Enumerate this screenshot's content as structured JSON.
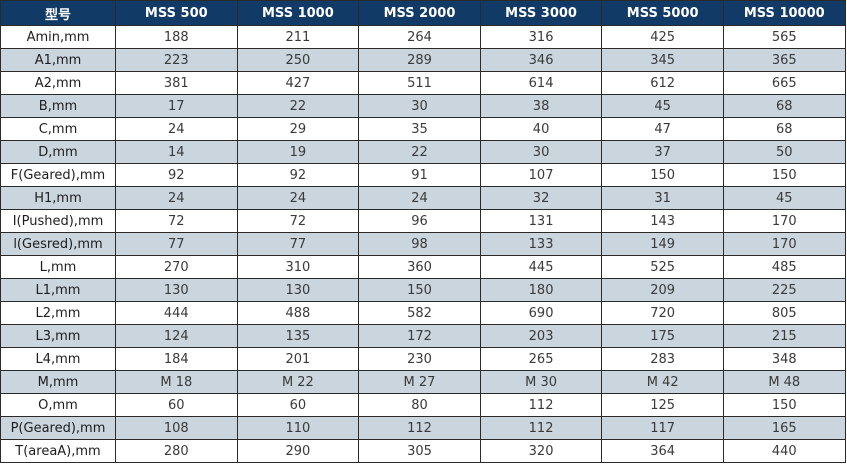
{
  "table": {
    "header": {
      "param_label": "型号",
      "models": [
        "MSS 500",
        "MSS 1000",
        "MSS 2000",
        "MSS 3000",
        "MSS 5000",
        "MSS 10000"
      ]
    },
    "rows": [
      {
        "param": "Amin,mm",
        "values": [
          "188",
          "211",
          "264",
          "316",
          "425",
          "565"
        ]
      },
      {
        "param": "A1,mm",
        "values": [
          "223",
          "250",
          "289",
          "346",
          "345",
          "365"
        ]
      },
      {
        "param": "A2,mm",
        "values": [
          "381",
          "427",
          "511",
          "614",
          "612",
          "665"
        ]
      },
      {
        "param": "B,mm",
        "values": [
          "17",
          "22",
          "30",
          "38",
          "45",
          "68"
        ]
      },
      {
        "param": "C,mm",
        "values": [
          "24",
          "29",
          "35",
          "40",
          "47",
          "68"
        ]
      },
      {
        "param": "D,mm",
        "values": [
          "14",
          "19",
          "22",
          "30",
          "37",
          "50"
        ]
      },
      {
        "param": "F(Geared),mm",
        "values": [
          "92",
          "92",
          "91",
          "107",
          "150",
          "150"
        ]
      },
      {
        "param": "H1,mm",
        "values": [
          "24",
          "24",
          "24",
          "32",
          "31",
          "45"
        ]
      },
      {
        "param": "I(Pushed),mm",
        "values": [
          "72",
          "72",
          "96",
          "131",
          "143",
          "170"
        ]
      },
      {
        "param": "l(Gesred),mm",
        "values": [
          "77",
          "77",
          "98",
          "133",
          "149",
          "170"
        ]
      },
      {
        "param": "L,mm",
        "values": [
          "270",
          "310",
          "360",
          "445",
          "525",
          "485"
        ]
      },
      {
        "param": "L1,mm",
        "values": [
          "130",
          "130",
          "150",
          "180",
          "209",
          "225"
        ]
      },
      {
        "param": "L2,mm",
        "values": [
          "444",
          "488",
          "582",
          "690",
          "720",
          "805"
        ]
      },
      {
        "param": "L3,mm",
        "values": [
          "124",
          "135",
          "172",
          "203",
          "175",
          "215"
        ]
      },
      {
        "param": "L4,mm",
        "values": [
          "184",
          "201",
          "230",
          "265",
          "283",
          "348"
        ]
      },
      {
        "param": "M,mm",
        "values": [
          "M 18",
          "M 22",
          "M 27",
          "M 30",
          "M 42",
          "M 48"
        ]
      },
      {
        "param": "O,mm",
        "values": [
          "60",
          "60",
          "80",
          "112",
          "125",
          "150"
        ]
      },
      {
        "param": "P(Geared),mm",
        "values": [
          "108",
          "110",
          "112",
          "112",
          "117",
          "165"
        ]
      },
      {
        "param": "T(areaA),mm",
        "values": [
          "280",
          "290",
          "305",
          "320",
          "364",
          "440"
        ]
      }
    ]
  },
  "colors": {
    "header_bg": "#113a66",
    "header_text": "#ffffff",
    "alt_row_bg": "#cad5de",
    "border": "#2a2a2a"
  }
}
